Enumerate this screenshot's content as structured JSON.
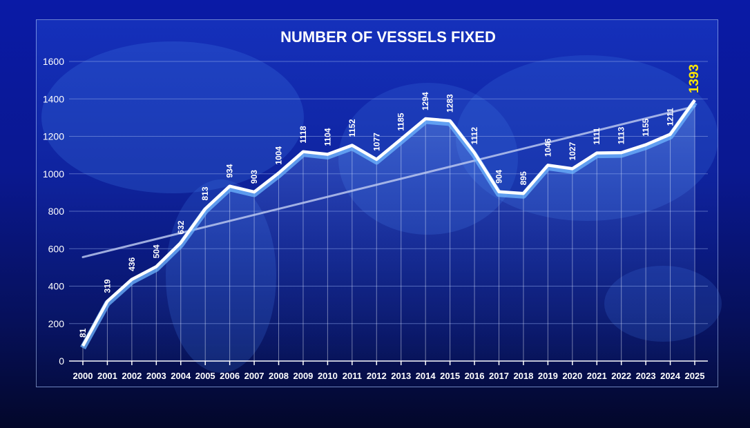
{
  "chart_data": {
    "type": "line",
    "title": "NUMBER OF VESSELS FIXED",
    "xlabel": "",
    "ylabel": "",
    "categories": [
      "2000",
      "2001",
      "2002",
      "2003",
      "2004",
      "2005",
      "2006",
      "2007",
      "2008",
      "2009",
      "2010",
      "2011",
      "2012",
      "2013",
      "2014",
      "2015",
      "2016",
      "2017",
      "2018",
      "2019",
      "2020",
      "2021",
      "2022",
      "2023",
      "2024",
      "2025"
    ],
    "series": [
      {
        "values": [
          81,
          319,
          436,
          504,
          632,
          813,
          934,
          903,
          1004,
          1118,
          1104,
          1152,
          1077,
          1185,
          1294,
          1283,
          1112,
          904,
          895,
          1046,
          1027,
          1111,
          1113,
          1155,
          1211,
          1393
        ]
      }
    ],
    "trendline": {
      "start": 555,
      "end": 1360
    },
    "ylim": [
      0,
      1600
    ],
    "yticks": [
      0,
      200,
      400,
      600,
      800,
      1000,
      1200,
      1400,
      1600
    ],
    "grid": true,
    "legend": "none",
    "highlight_last": true,
    "colors": {
      "line": "#ffffff",
      "line_shadow": "#6fb6ff",
      "trend": "#b9c6ef",
      "label": "#ffffff",
      "highlight_label": "#ffe600",
      "grid": "#8fa6e6",
      "drop_line": "#ffffff"
    }
  }
}
